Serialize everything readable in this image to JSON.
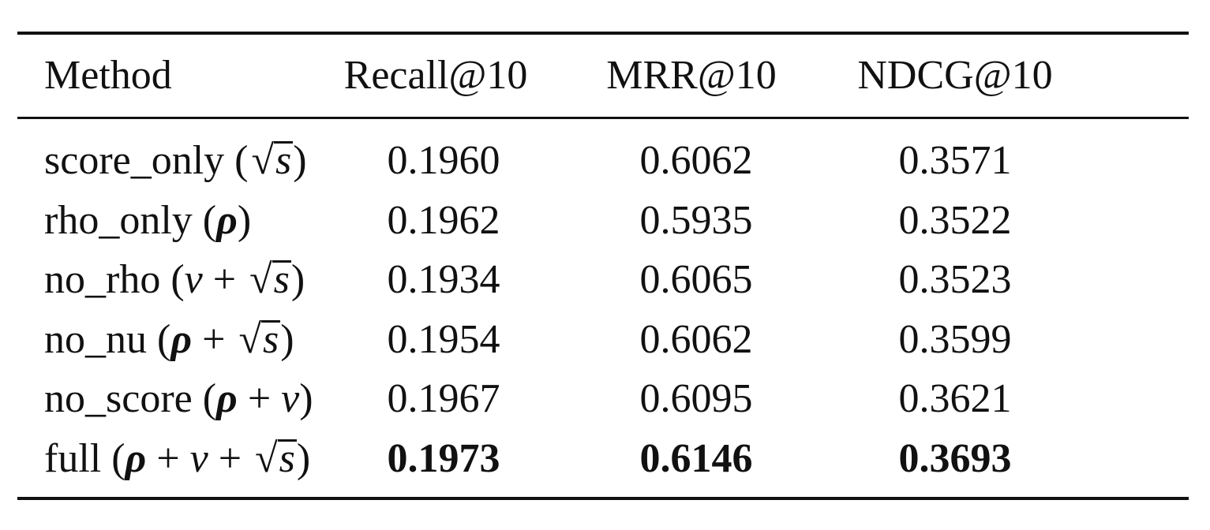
{
  "table": {
    "headers": {
      "method": "Method",
      "recall": "Recall@10",
      "mrr": "MRR@10",
      "ndcg": "NDCG@10"
    },
    "rows": [
      {
        "name": "score_only",
        "formula_parts": [
          "(",
          "√",
          "s",
          ")"
        ],
        "recall": "0.1960",
        "mrr": "0.6062",
        "ndcg": "0.3571",
        "bold": false
      },
      {
        "name": "rho_only",
        "formula_parts": [
          "(",
          "ρ",
          ")"
        ],
        "recall": "0.1962",
        "mrr": "0.5935",
        "ndcg": "0.3522",
        "bold": false
      },
      {
        "name": "no_rho",
        "formula_parts": [
          "(",
          "ν",
          "+",
          "√",
          "s",
          ")"
        ],
        "recall": "0.1934",
        "mrr": "0.6065",
        "ndcg": "0.3523",
        "bold": false
      },
      {
        "name": "no_nu",
        "formula_parts": [
          "(",
          "ρ",
          "+",
          "√",
          "s",
          ")"
        ],
        "recall": "0.1954",
        "mrr": "0.6062",
        "ndcg": "0.3599",
        "bold": false
      },
      {
        "name": "no_score",
        "formula_parts": [
          "(",
          "ρ",
          "+",
          "ν",
          ")"
        ],
        "recall": "0.1967",
        "mrr": "0.6095",
        "ndcg": "0.3621",
        "bold": false
      },
      {
        "name": "full",
        "formula_parts": [
          "(",
          "ρ",
          "+",
          "ν",
          "+",
          "√",
          "s",
          ")"
        ],
        "recall": "0.1973",
        "mrr": "0.6146",
        "ndcg": "0.3693",
        "bold": true
      }
    ]
  }
}
